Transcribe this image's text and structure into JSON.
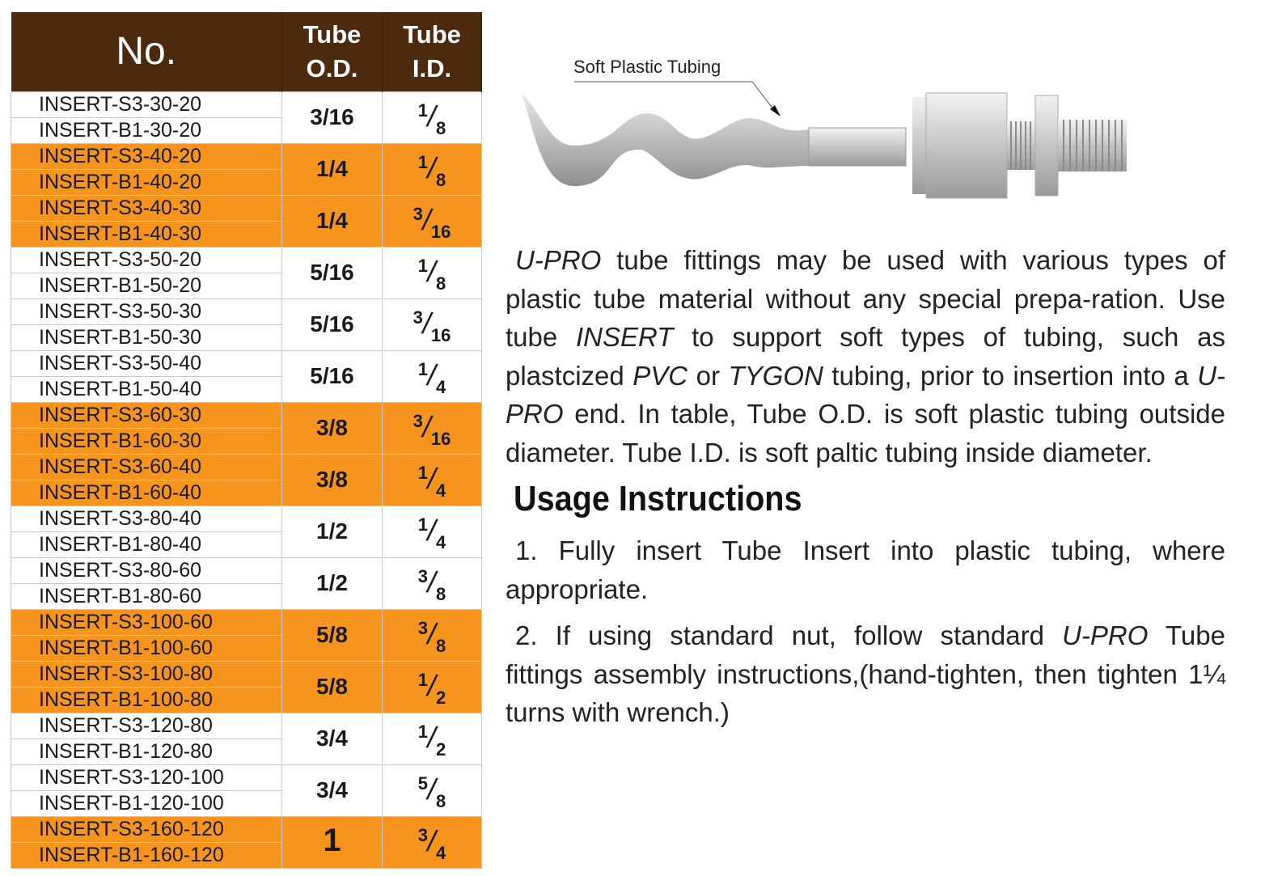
{
  "table": {
    "headers": {
      "no": "No.",
      "od_line1": "Tube",
      "od_line2": "O.D.",
      "id_line1": "Tube",
      "id_line2": "I.D."
    },
    "groups": [
      {
        "items": [
          "INSERT-S3-30-20",
          "INSERT-B1-30-20"
        ],
        "od": "3/16",
        "id": "1/8",
        "highlight": false
      },
      {
        "items": [
          "INSERT-S3-40-20",
          "INSERT-B1-40-20"
        ],
        "od": "1/4",
        "id": "1/8",
        "highlight": true
      },
      {
        "items": [
          "INSERT-S3-40-30",
          "INSERT-B1-40-30"
        ],
        "od": "1/4",
        "id": "3/16",
        "highlight": true
      },
      {
        "items": [
          "INSERT-S3-50-20",
          "INSERT-B1-50-20"
        ],
        "od": "5/16",
        "id": "1/8",
        "highlight": false
      },
      {
        "items": [
          "INSERT-S3-50-30",
          "INSERT-B1-50-30"
        ],
        "od": "5/16",
        "id": "3/16",
        "highlight": false
      },
      {
        "items": [
          "INSERT-S3-50-40",
          "INSERT-B1-50-40"
        ],
        "od": "5/16",
        "id": "1/4",
        "highlight": false
      },
      {
        "items": [
          "INSERT-S3-60-30",
          "INSERT-B1-60-30"
        ],
        "od": "3/8",
        "id": "3/16",
        "highlight": true
      },
      {
        "items": [
          "INSERT-S3-60-40",
          "INSERT-B1-60-40"
        ],
        "od": "3/8",
        "id": "1/4",
        "highlight": true
      },
      {
        "items": [
          "INSERT-S3-80-40",
          "INSERT-B1-80-40"
        ],
        "od": "1/2",
        "id": "1/4",
        "highlight": false
      },
      {
        "items": [
          "INSERT-S3-80-60",
          "INSERT-B1-80-60"
        ],
        "od": "1/2",
        "id": "3/8",
        "highlight": false
      },
      {
        "items": [
          "INSERT-S3-100-60",
          "INSERT-B1-100-60"
        ],
        "od": "5/8",
        "id": "3/8",
        "highlight": true
      },
      {
        "items": [
          "INSERT-S3-100-80",
          "INSERT-B1-100-80"
        ],
        "od": "5/8",
        "id": "1/2",
        "highlight": true
      },
      {
        "items": [
          "INSERT-S3-120-80",
          "INSERT-B1-120-80"
        ],
        "od": "3/4",
        "id": "1/2",
        "highlight": false
      },
      {
        "items": [
          "INSERT-S3-120-100",
          "INSERT-B1-120-100"
        ],
        "od": "3/4",
        "id": "5/8",
        "highlight": false
      },
      {
        "items": [
          "INSERT-S3-160-120",
          "INSERT-B1-160-120"
        ],
        "od": "1",
        "id": "3/4",
        "highlight": true
      }
    ]
  },
  "colors": {
    "header_bg": "#4b2a0d",
    "highlight_row": "#f7941e",
    "plain_row": "#ffffff"
  },
  "illustration": {
    "caption": "Soft Plastic Tubing"
  },
  "description": [
    {
      "text": "U-PRO",
      "italic": true
    },
    {
      "text": " tube fittings may be used with various types of plastic tube material without any special prepa-ration. Use tube ",
      "italic": false
    },
    {
      "text": "INSERT",
      "italic": true
    },
    {
      "text": " to support soft types of tubing, such as plastcized ",
      "italic": false
    },
    {
      "text": "PVC",
      "italic": true
    },
    {
      "text": " or ",
      "italic": false
    },
    {
      "text": "TYGON",
      "italic": true
    },
    {
      "text": " tubing, prior to insertion into a ",
      "italic": false
    },
    {
      "text": "U-PRO",
      "italic": true
    },
    {
      "text": "  end. In table, Tube O.D. is soft plastic tubing outside diameter. Tube I.D. is soft paltic tubing inside diameter.",
      "italic": false
    }
  ],
  "usage": {
    "heading": "Usage Instructions",
    "steps": [
      [
        {
          "text": "1. Fully insert Tube Insert into plastic tubing, where appropriate.",
          "italic": false
        }
      ],
      [
        {
          "text": "2. If using standard nut, follow standard ",
          "italic": false
        },
        {
          "text": "U-PRO",
          "italic": true
        },
        {
          "text": " Tube fittings assembly instructions,(hand-tighten, then tighten 1¼ turns with wrench.)",
          "italic": false
        }
      ]
    ]
  }
}
